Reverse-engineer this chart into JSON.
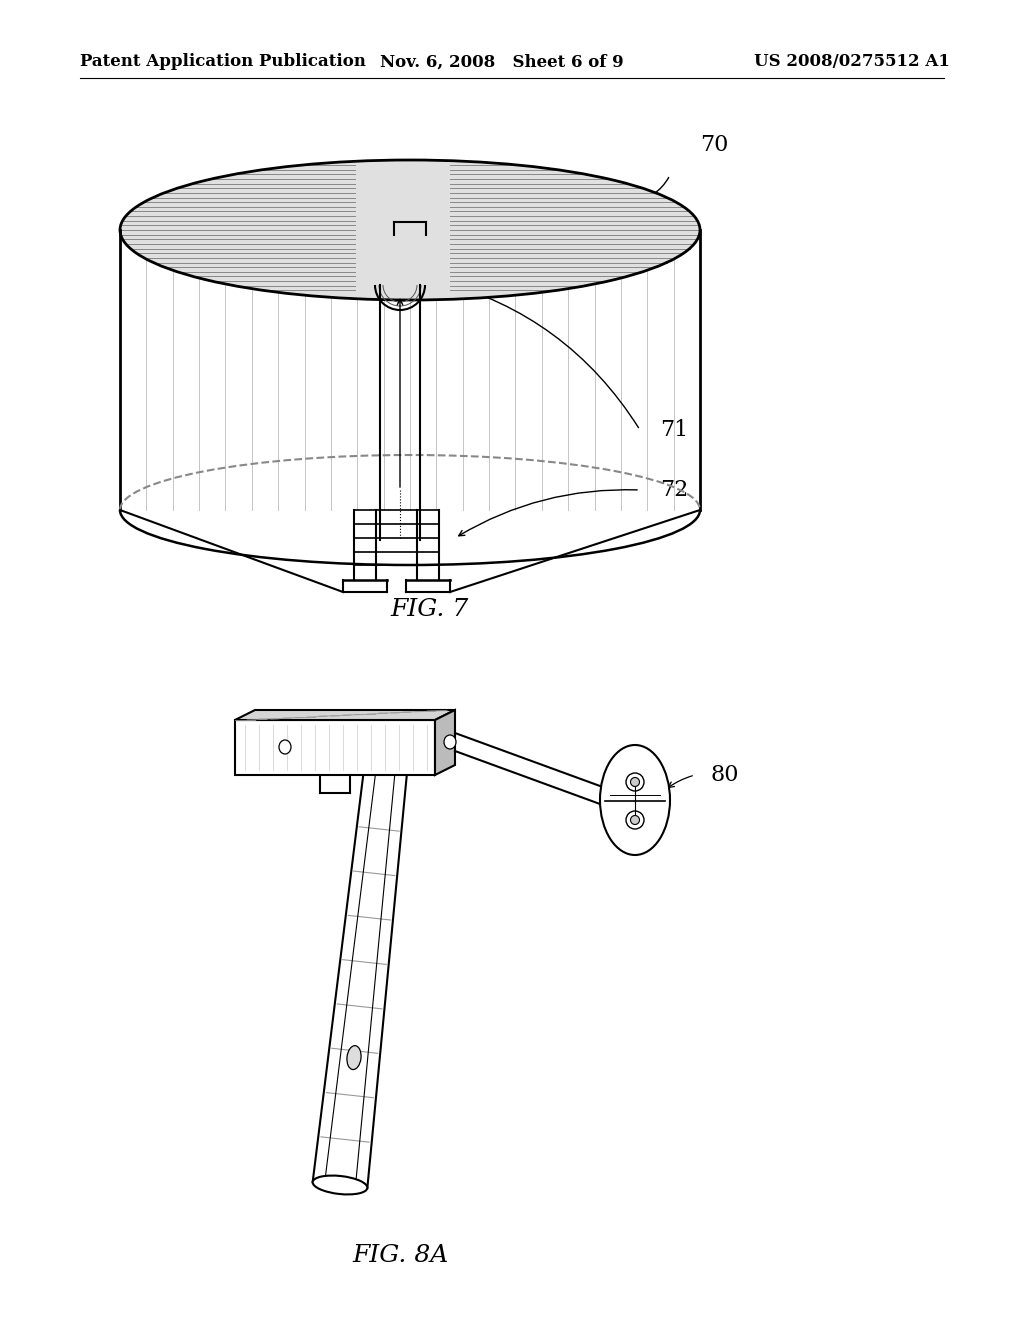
{
  "background_color": "#ffffff",
  "header_left": "Patent Application Publication",
  "header_mid": "Nov. 6, 2008   Sheet 6 of 9",
  "header_right": "US 2008/0275512 A1",
  "header_fontsize": 12,
  "fig7_label": "FIG. 7",
  "fig8a_label": "FIG. 8A",
  "label_70": "70",
  "label_71": "71",
  "label_72": "72",
  "label_80": "80",
  "line_color": "#000000",
  "gray_light": "#e8e8e8",
  "gray_mid": "#c0c0c0",
  "gray_dark": "#888888",
  "hatch_line": "#777777"
}
